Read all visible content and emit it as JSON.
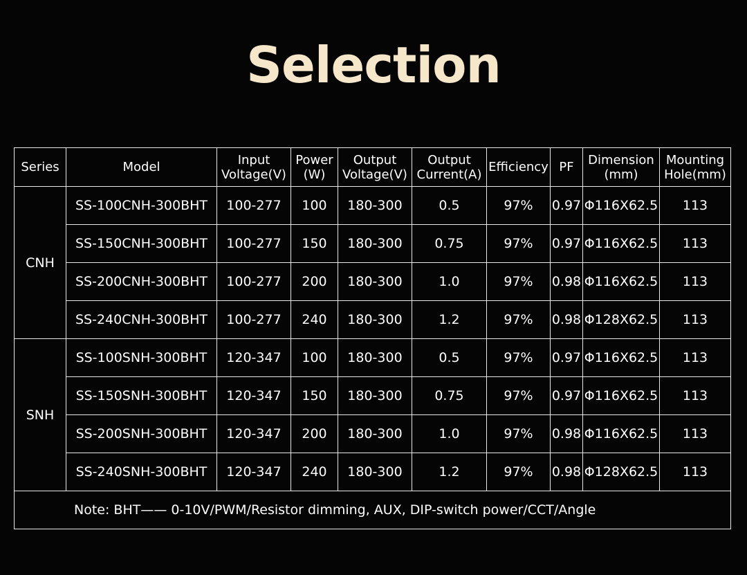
{
  "title": "Selection",
  "table": {
    "headers": [
      [
        "Series"
      ],
      [
        "Model"
      ],
      [
        "Input",
        "Voltage(V)"
      ],
      [
        "Power",
        "(W)"
      ],
      [
        "Output",
        "Voltage(V)"
      ],
      [
        "Output",
        "Current(A)"
      ],
      [
        "Efficiency"
      ],
      [
        "PF"
      ],
      [
        "Dimension",
        "(mm)"
      ],
      [
        "Mounting",
        "Hole(mm)"
      ]
    ],
    "groups": [
      {
        "series": "CNH",
        "rows": [
          [
            "SS-100CNH-300BHT",
            "100-277",
            "100",
            "180-300",
            "0.5",
            "97%",
            "0.97",
            "Φ116X62.5",
            "113"
          ],
          [
            "SS-150CNH-300BHT",
            "100-277",
            "150",
            "180-300",
            "0.75",
            "97%",
            "0.97",
            "Φ116X62.5",
            "113"
          ],
          [
            "SS-200CNH-300BHT",
            "100-277",
            "200",
            "180-300",
            "1.0",
            "97%",
            "0.98",
            "Φ116X62.5",
            "113"
          ],
          [
            "SS-240CNH-300BHT",
            "100-277",
            "240",
            "180-300",
            "1.2",
            "97%",
            "0.98",
            "Φ128X62.5",
            "113"
          ]
        ]
      },
      {
        "series": "SNH",
        "rows": [
          [
            "SS-100SNH-300BHT",
            "120-347",
            "100",
            "180-300",
            "0.5",
            "97%",
            "0.97",
            "Φ116X62.5",
            "113"
          ],
          [
            "SS-150SNH-300BHT",
            "120-347",
            "150",
            "180-300",
            "0.75",
            "97%",
            "0.97",
            "Φ116X62.5",
            "113"
          ],
          [
            "SS-200SNH-300BHT",
            "120-347",
            "200",
            "180-300",
            "1.0",
            "97%",
            "0.98",
            "Φ116X62.5",
            "113"
          ],
          [
            "SS-240SNH-300BHT",
            "120-347",
            "240",
            "180-300",
            "1.2",
            "97%",
            "0.98",
            "Φ128X62.5",
            "113"
          ]
        ]
      }
    ],
    "note": "Note:  BHT—— 0-10V/PWM/Resistor dimming, AUX, DIP-switch power/CCT/Angle"
  }
}
